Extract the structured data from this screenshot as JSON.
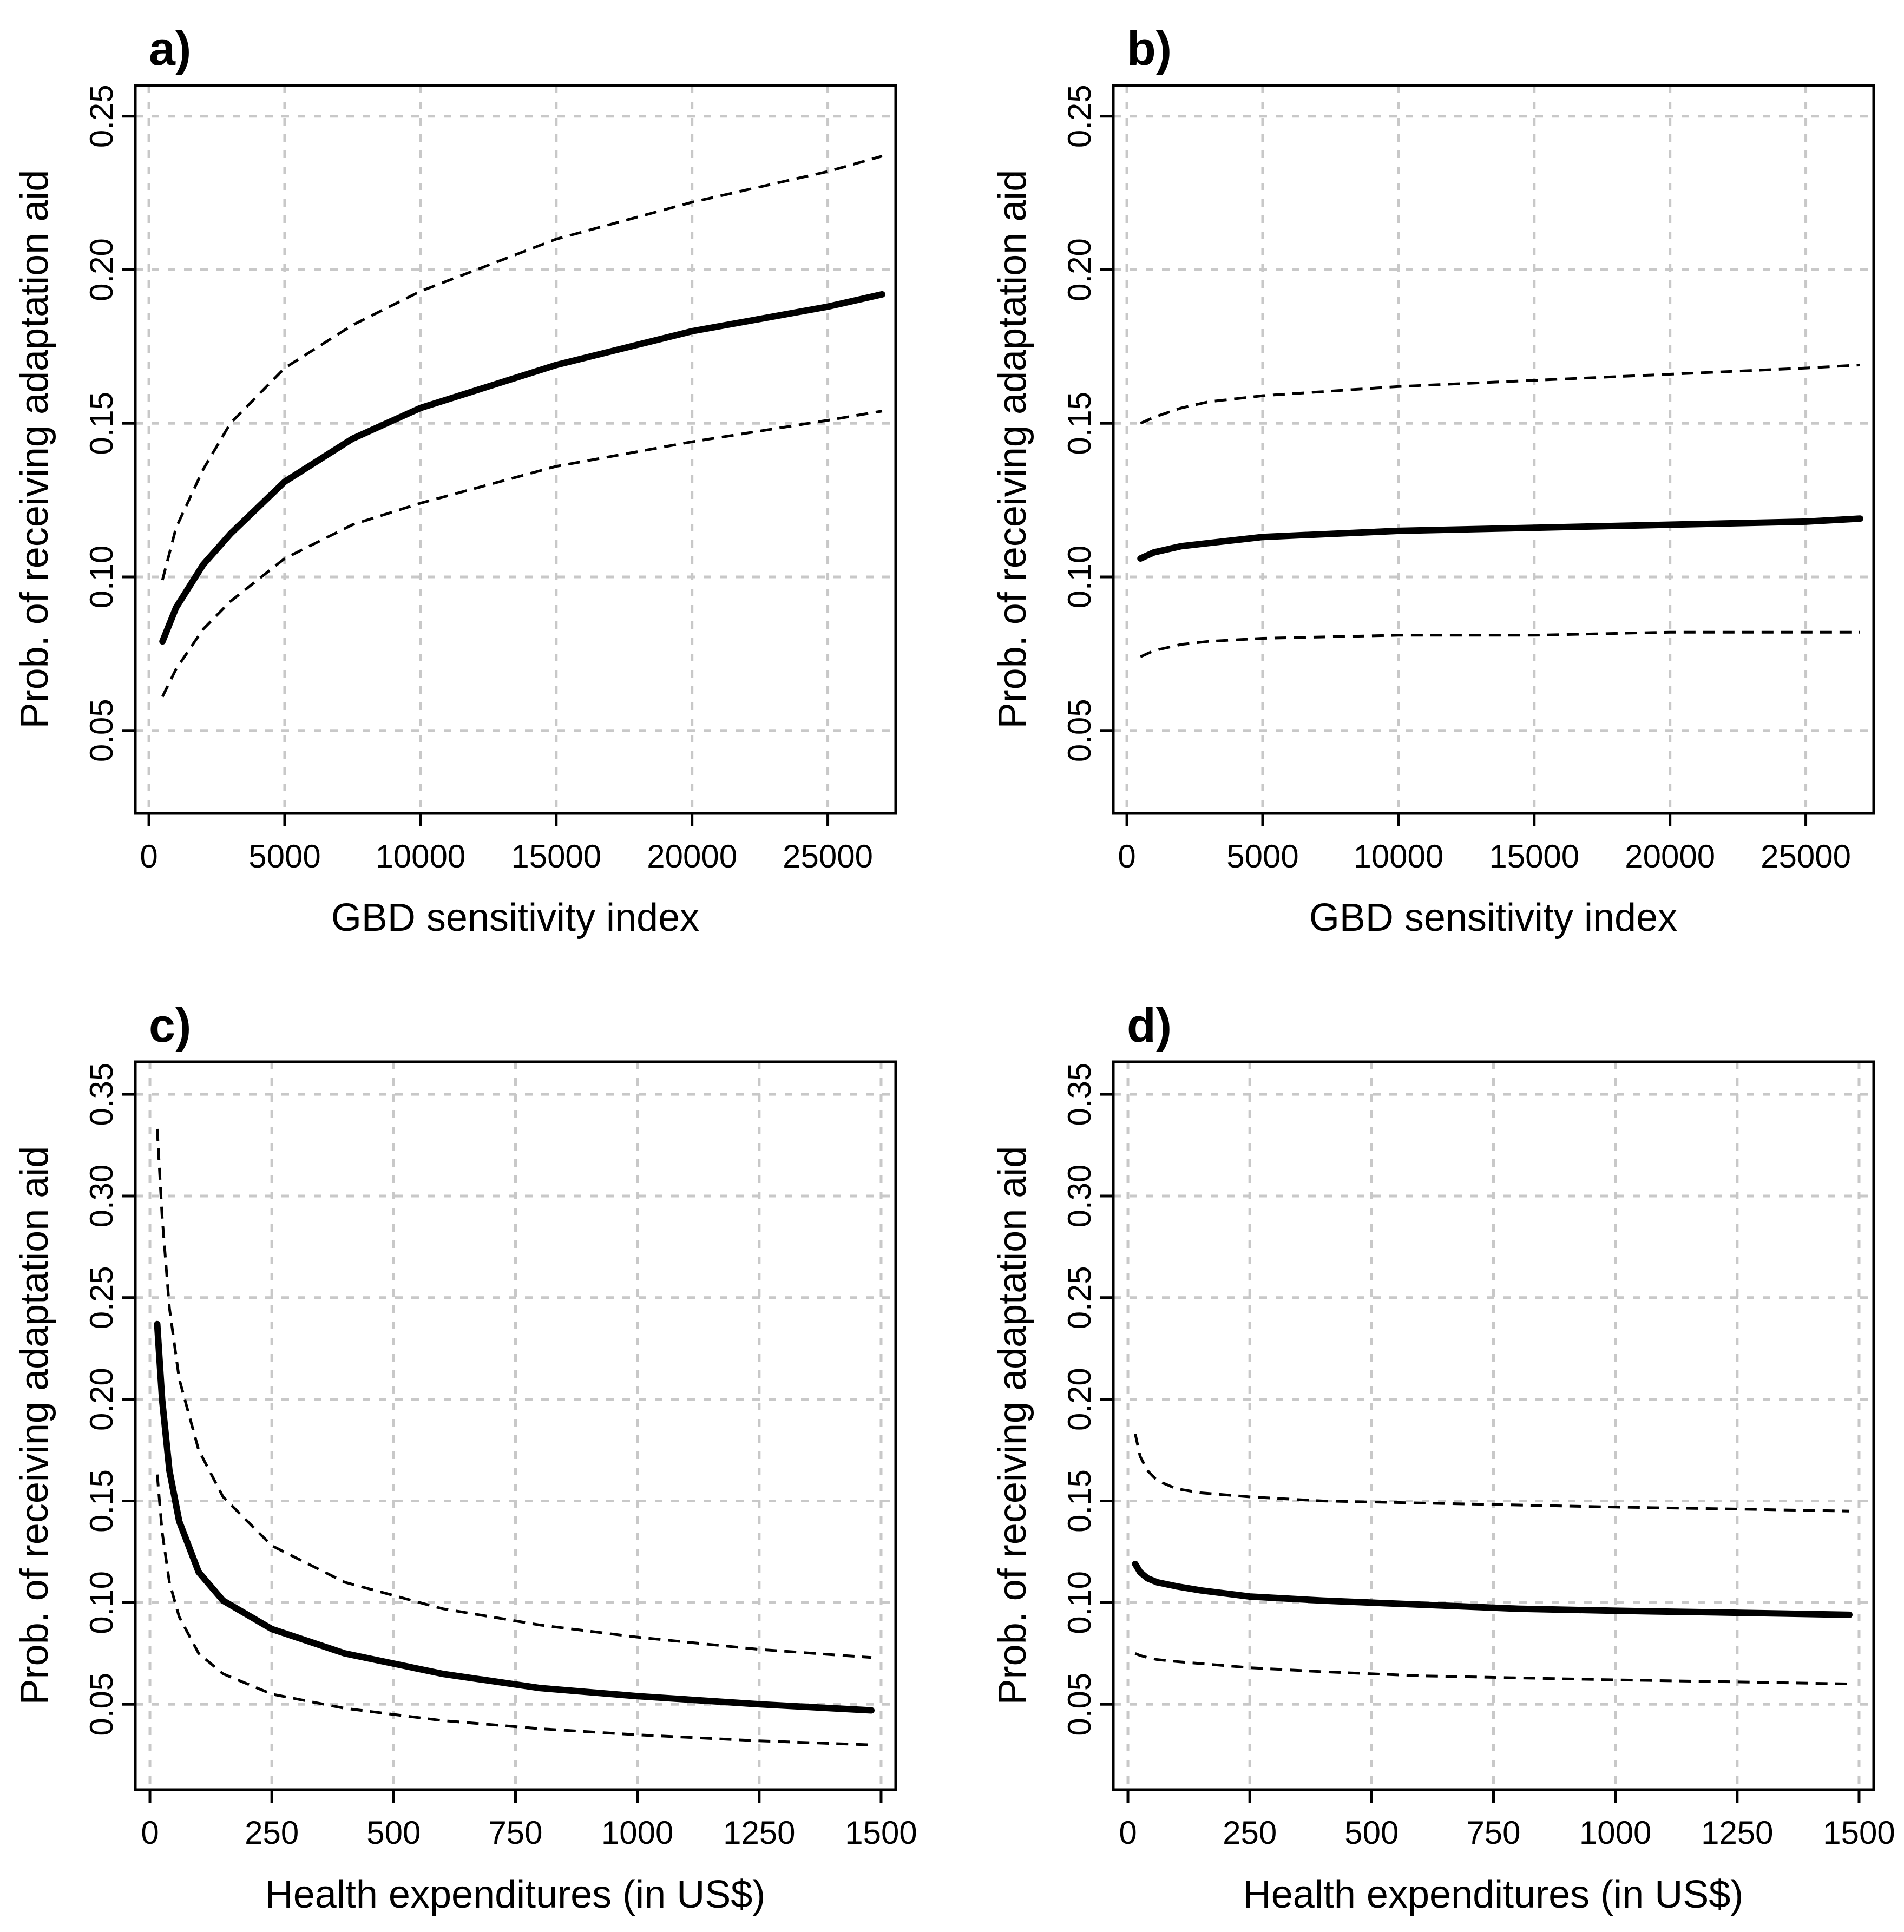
{
  "chart_data": [
    {
      "type": "line",
      "panel_label": "a)",
      "xlabel": "GBD sensitivity index",
      "ylabel": "Prob. of receiving adaptation aid",
      "xlim": [
        -500,
        27500
      ],
      "ylim": [
        0.023,
        0.26
      ],
      "x_ticks": [
        0,
        5000,
        10000,
        15000,
        20000,
        25000
      ],
      "x_tick_labels": [
        "0",
        "5000",
        "10000",
        "15000",
        "20000",
        "25000"
      ],
      "y_ticks": [
        0.05,
        0.1,
        0.15,
        0.2,
        0.25
      ],
      "y_tick_labels": [
        "0.05",
        "0.10",
        "0.15",
        "0.20",
        "0.25"
      ],
      "grid": true,
      "series": [
        {
          "name": "upper",
          "style": "dashed",
          "x": [
            500,
            1000,
            2000,
            3000,
            5000,
            7500,
            10000,
            15000,
            20000,
            25000,
            27000
          ],
          "values": [
            0.099,
            0.116,
            0.135,
            0.15,
            0.168,
            0.182,
            0.193,
            0.21,
            0.222,
            0.232,
            0.237
          ]
        },
        {
          "name": "estimate",
          "style": "solid",
          "x": [
            500,
            1000,
            2000,
            3000,
            5000,
            7500,
            10000,
            15000,
            20000,
            25000,
            27000
          ],
          "values": [
            0.079,
            0.09,
            0.104,
            0.114,
            0.131,
            0.145,
            0.155,
            0.169,
            0.18,
            0.188,
            0.192
          ]
        },
        {
          "name": "lower",
          "style": "dashed",
          "x": [
            500,
            1000,
            2000,
            3000,
            5000,
            7500,
            10000,
            15000,
            20000,
            25000,
            27000
          ],
          "values": [
            0.061,
            0.07,
            0.083,
            0.092,
            0.106,
            0.117,
            0.124,
            0.136,
            0.144,
            0.151,
            0.154
          ]
        }
      ]
    },
    {
      "type": "line",
      "panel_label": "b)",
      "xlabel": "GBD sensitivity index",
      "ylabel": "Prob. of receiving adaptation aid",
      "xlim": [
        -500,
        27500
      ],
      "ylim": [
        0.023,
        0.26
      ],
      "x_ticks": [
        0,
        5000,
        10000,
        15000,
        20000,
        25000
      ],
      "x_tick_labels": [
        "0",
        "5000",
        "10000",
        "15000",
        "20000",
        "25000"
      ],
      "y_ticks": [
        0.05,
        0.1,
        0.15,
        0.2,
        0.25
      ],
      "y_tick_labels": [
        "0.05",
        "0.10",
        "0.15",
        "0.20",
        "0.25"
      ],
      "grid": true,
      "series": [
        {
          "name": "upper",
          "style": "dashed",
          "x": [
            500,
            1000,
            2000,
            3000,
            5000,
            10000,
            15000,
            20000,
            25000,
            27000
          ],
          "values": [
            0.15,
            0.152,
            0.155,
            0.157,
            0.159,
            0.162,
            0.164,
            0.166,
            0.168,
            0.169
          ]
        },
        {
          "name": "estimate",
          "style": "solid",
          "x": [
            500,
            1000,
            2000,
            3000,
            5000,
            10000,
            15000,
            20000,
            25000,
            27000
          ],
          "values": [
            0.106,
            0.108,
            0.11,
            0.111,
            0.113,
            0.115,
            0.116,
            0.117,
            0.118,
            0.119
          ]
        },
        {
          "name": "lower",
          "style": "dashed",
          "x": [
            500,
            1000,
            2000,
            3000,
            5000,
            10000,
            15000,
            20000,
            25000,
            27000
          ],
          "values": [
            0.074,
            0.076,
            0.078,
            0.079,
            0.08,
            0.081,
            0.081,
            0.082,
            0.082,
            0.082
          ]
        }
      ]
    },
    {
      "type": "line",
      "panel_label": "c)",
      "xlabel": "Health expenditures (in US$)",
      "ylabel": "Prob. of receiving adaptation aid",
      "xlim": [
        -30,
        1530
      ],
      "ylim": [
        0.008,
        0.366
      ],
      "x_ticks": [
        0,
        250,
        500,
        750,
        1000,
        1250,
        1500
      ],
      "x_tick_labels": [
        "0",
        "250",
        "500",
        "750",
        "1000",
        "1250",
        "1500"
      ],
      "y_ticks": [
        0.05,
        0.1,
        0.15,
        0.2,
        0.25,
        0.3,
        0.35
      ],
      "y_tick_labels": [
        "0.05",
        "0.10",
        "0.15",
        "0.20",
        "0.25",
        "0.30",
        "0.35"
      ],
      "grid": true,
      "series": [
        {
          "name": "upper",
          "style": "dashed",
          "x": [
            15,
            25,
            40,
            60,
            100,
            150,
            250,
            400,
            600,
            800,
            1000,
            1250,
            1480
          ],
          "values": [
            0.333,
            0.29,
            0.245,
            0.21,
            0.175,
            0.152,
            0.128,
            0.11,
            0.097,
            0.089,
            0.083,
            0.077,
            0.073
          ]
        },
        {
          "name": "estimate",
          "style": "solid",
          "x": [
            15,
            25,
            40,
            60,
            100,
            150,
            250,
            400,
            600,
            800,
            1000,
            1250,
            1480
          ],
          "values": [
            0.237,
            0.2,
            0.165,
            0.14,
            0.115,
            0.101,
            0.087,
            0.075,
            0.065,
            0.058,
            0.054,
            0.05,
            0.047
          ]
        },
        {
          "name": "lower",
          "style": "dashed",
          "x": [
            15,
            25,
            40,
            60,
            100,
            150,
            250,
            400,
            600,
            800,
            1000,
            1250,
            1480
          ],
          "values": [
            0.163,
            0.135,
            0.11,
            0.093,
            0.075,
            0.065,
            0.055,
            0.048,
            0.042,
            0.038,
            0.035,
            0.032,
            0.03
          ]
        }
      ]
    },
    {
      "type": "line",
      "panel_label": "d)",
      "xlabel": "Health expenditures (in US$)",
      "ylabel": "Prob. of receiving adaptation aid",
      "xlim": [
        -30,
        1530
      ],
      "ylim": [
        0.008,
        0.366
      ],
      "x_ticks": [
        0,
        250,
        500,
        750,
        1000,
        1250,
        1500
      ],
      "x_tick_labels": [
        "0",
        "250",
        "500",
        "750",
        "1000",
        "1250",
        "1500"
      ],
      "y_ticks": [
        0.05,
        0.1,
        0.15,
        0.2,
        0.25,
        0.3,
        0.35
      ],
      "y_tick_labels": [
        "0.05",
        "0.10",
        "0.15",
        "0.20",
        "0.25",
        "0.30",
        "0.35"
      ],
      "grid": true,
      "series": [
        {
          "name": "upper",
          "style": "dashed",
          "x": [
            15,
            25,
            40,
            60,
            100,
            150,
            250,
            400,
            600,
            800,
            1000,
            1250,
            1480
          ],
          "values": [
            0.183,
            0.172,
            0.165,
            0.16,
            0.156,
            0.154,
            0.152,
            0.15,
            0.149,
            0.148,
            0.147,
            0.146,
            0.145
          ]
        },
        {
          "name": "estimate",
          "style": "solid",
          "x": [
            15,
            25,
            40,
            60,
            100,
            150,
            250,
            400,
            600,
            800,
            1000,
            1250,
            1480
          ],
          "values": [
            0.119,
            0.115,
            0.112,
            0.11,
            0.108,
            0.106,
            0.103,
            0.101,
            0.099,
            0.097,
            0.096,
            0.095,
            0.094
          ]
        },
        {
          "name": "lower",
          "style": "dashed",
          "x": [
            15,
            25,
            40,
            60,
            100,
            150,
            250,
            400,
            600,
            800,
            1000,
            1250,
            1480
          ],
          "values": [
            0.075,
            0.074,
            0.073,
            0.072,
            0.071,
            0.07,
            0.068,
            0.066,
            0.064,
            0.063,
            0.062,
            0.061,
            0.06
          ]
        }
      ]
    }
  ]
}
